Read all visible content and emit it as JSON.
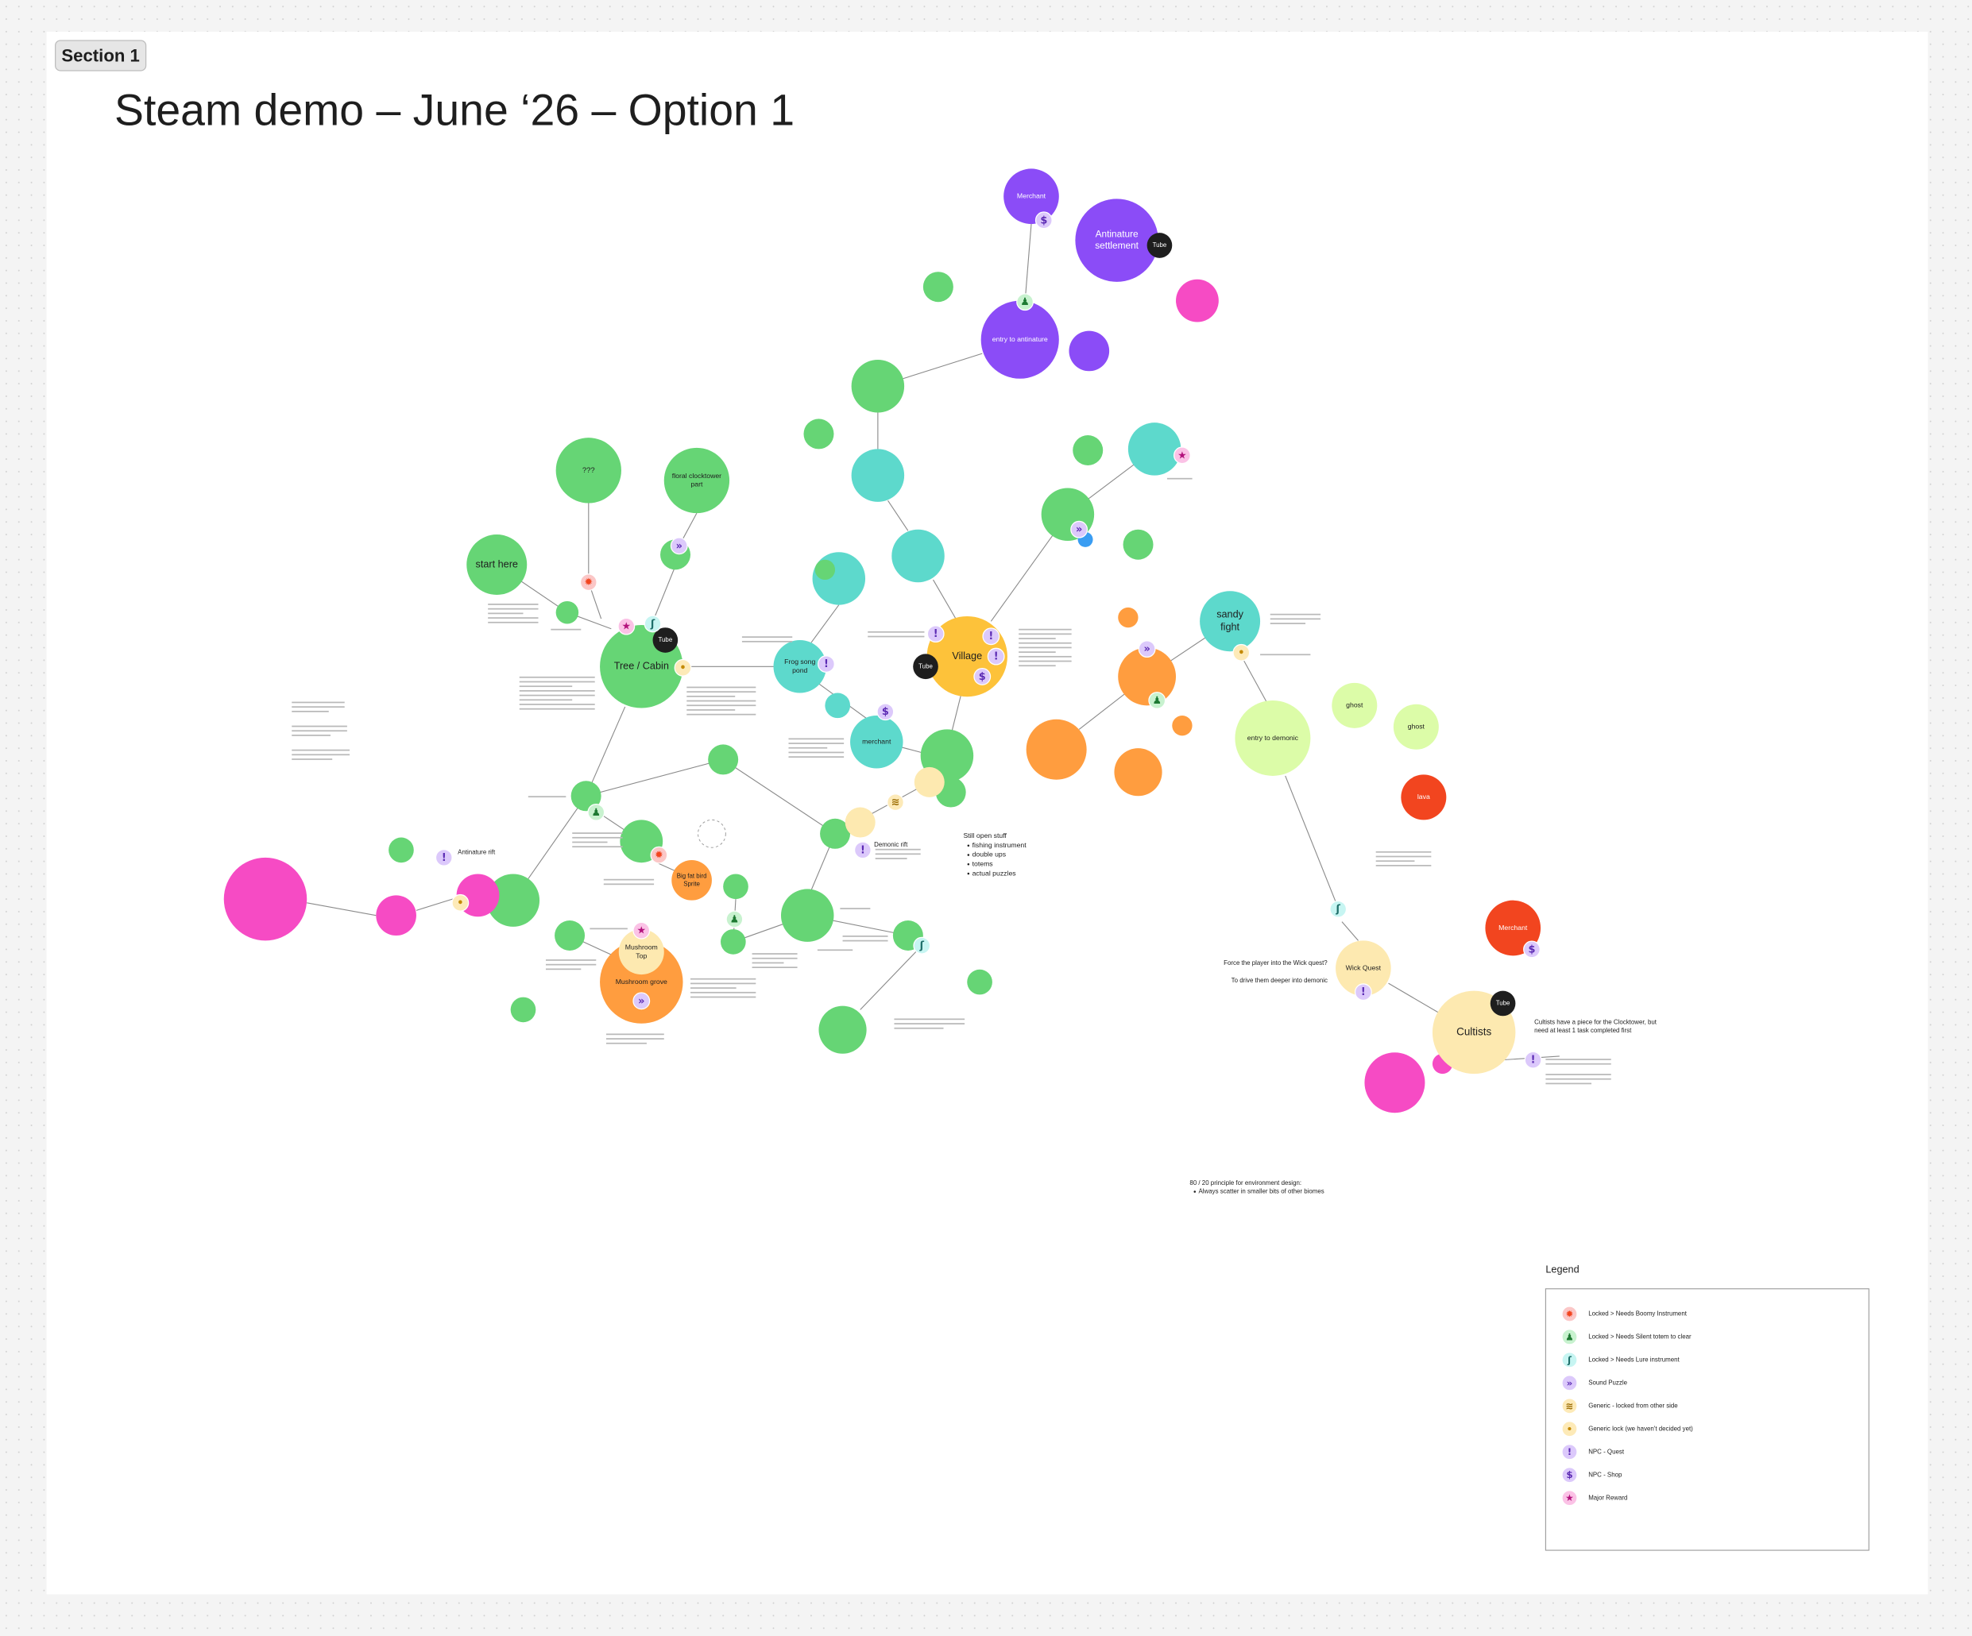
{
  "section_label": "Section 1",
  "title": "Steam demo – June ‘26 – Option 1",
  "nodes": [
    {
      "lines": [
        "Merchant"
      ]
    },
    {
      "lines": [
        "Antinature",
        "settlement"
      ],
      "tag": "Tube"
    },
    {
      "lines": [
        "entry to antinature"
      ]
    },
    {
      "lines": [
        "???"
      ]
    },
    {
      "lines": [
        "floral clocktower",
        "part"
      ]
    },
    {
      "lines": [
        "start here"
      ]
    },
    {
      "lines": [
        "Tree / Cabin"
      ],
      "tag": "Tube"
    },
    {
      "lines": [
        "Frog song",
        "pond"
      ]
    },
    {
      "lines": [
        "Village"
      ],
      "tag": "Tube"
    },
    {
      "lines": [
        "merchant"
      ]
    },
    {
      "lines": [
        "sandy",
        "fight"
      ]
    },
    {
      "lines": [
        "entry to demonic"
      ]
    },
    {
      "lines": [
        "ghost"
      ]
    },
    {
      "lines": [
        "ghost"
      ]
    },
    {
      "lines": [
        "lava"
      ]
    },
    {
      "lines": [
        "Merchant"
      ]
    },
    {
      "lines": [
        "Wick Quest"
      ]
    },
    {
      "lines": [
        "Cultists"
      ],
      "tag": "Tube"
    },
    {
      "lines": [
        "Big fat bird",
        "Sprite"
      ]
    },
    {
      "lines": [
        "Mushroom grove"
      ]
    },
    {
      "lines": [
        "Mushroom",
        "Top"
      ]
    }
  ],
  "notes": [
    {
      "lines": [
        "Still open stuff"
      ],
      "items": [
        "fishing instrument",
        "double ups",
        "totems",
        "actual puzzles"
      ]
    },
    {
      "lines": [
        "Force the player into the Wick quest?"
      ]
    },
    {
      "lines": [
        "To drive them deeper into demonic"
      ]
    },
    {
      "lines": [
        "80 / 20 principle for environment design:"
      ],
      "items": [
        "Always scatter in smaller bits of other biomes"
      ]
    },
    {
      "lines": [
        "Cultists have a piece for the Clocktower, but",
        "need at least 1 task completed first"
      ]
    },
    {
      "lines": [
        "Antinature rift"
      ]
    },
    {
      "lines": [
        "Demonic rift"
      ]
    }
  ],
  "legend": {
    "title": "Legend",
    "items": [
      {
        "icon": "✹",
        "label": "Locked > Needs Boomy Instrument"
      },
      {
        "icon": "♟",
        "label": "Locked > Needs Silent totem to clear"
      },
      {
        "icon": "ʃ",
        "label": "Locked > Needs Lure instrument"
      },
      {
        "icon": "»",
        "label": "Sound Puzzle"
      },
      {
        "icon": "≋",
        "label": "Generic - locked from other side"
      },
      {
        "icon": "•",
        "label": "Generic lock (we haven't decided yet)"
      },
      {
        "icon": "!",
        "label": "NPC - Quest"
      },
      {
        "icon": "$",
        "label": "NPC - Shop"
      },
      {
        "icon": "★",
        "label": "Major Reward"
      }
    ]
  }
}
